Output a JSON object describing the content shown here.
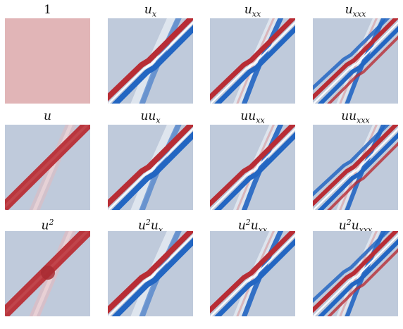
{
  "colors": {
    "background": "#bfcadb",
    "red": "#b82d35",
    "blue": "#2366c2",
    "pale_red": "#e9b6b9",
    "white": "#ffffff"
  },
  "panels": [
    {
      "id": "p00",
      "title": "1",
      "parts": [
        [
          "1",
          ""
        ]
      ]
    },
    {
      "id": "p01",
      "title": "u_x",
      "parts": [
        [
          "u",
          "x"
        ]
      ]
    },
    {
      "id": "p02",
      "title": "u_xx",
      "parts": [
        [
          "u",
          "xx"
        ]
      ]
    },
    {
      "id": "p03",
      "title": "u_xxx",
      "parts": [
        [
          "u",
          "xxx"
        ]
      ]
    },
    {
      "id": "p10",
      "title": "u",
      "parts": [
        [
          "u",
          ""
        ]
      ]
    },
    {
      "id": "p11",
      "title": "uu_x",
      "parts": [
        [
          "uu",
          "x"
        ]
      ]
    },
    {
      "id": "p12",
      "title": "uu_xx",
      "parts": [
        [
          "uu",
          "xx"
        ]
      ]
    },
    {
      "id": "p13",
      "title": "uu_xxx",
      "parts": [
        [
          "uu",
          "xxx"
        ]
      ]
    },
    {
      "id": "p20",
      "title": "u^2",
      "parts": [
        [
          "u",
          "",
          "2"
        ]
      ]
    },
    {
      "id": "p21",
      "title": "u^2u_x",
      "parts": [
        [
          "u",
          "",
          "2"
        ],
        [
          "u",
          "x"
        ]
      ]
    },
    {
      "id": "p22",
      "title": "u^2u_xx",
      "parts": [
        [
          "u",
          "",
          "2"
        ],
        [
          "u",
          "xx"
        ]
      ]
    },
    {
      "id": "p23",
      "title": "u^2u_xxx",
      "parts": [
        [
          "u",
          "",
          "2"
        ],
        [
          "u",
          "xxx"
        ]
      ]
    }
  ]
}
